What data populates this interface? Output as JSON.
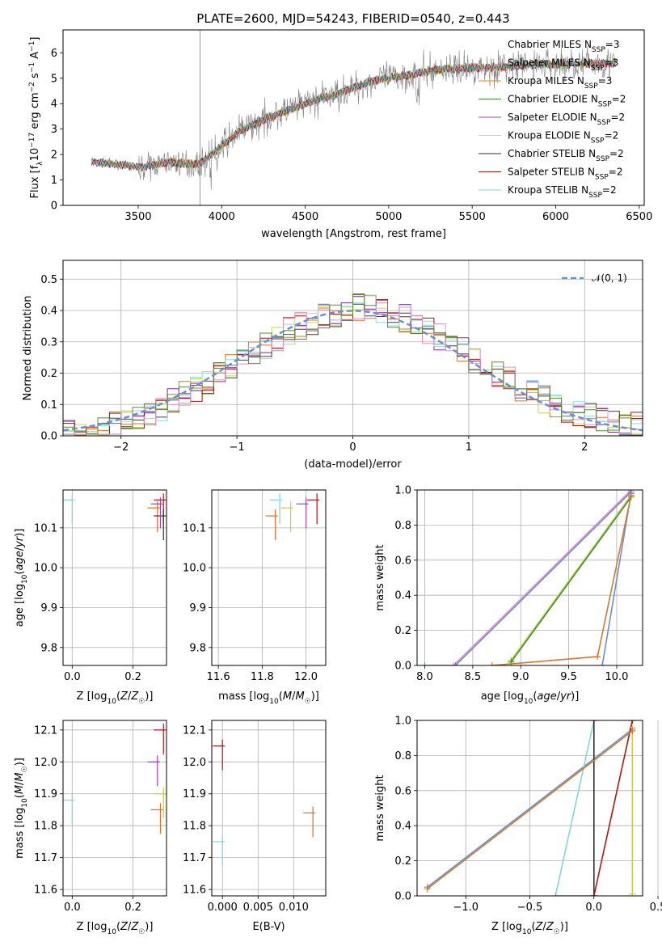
{
  "figure": {
    "title": "PLATE=2600, MJD=54243, FIBERID=0540, z=0.443"
  },
  "chart_data": [
    {
      "type": "line",
      "name": "spectrum",
      "xlabel": "wavelength [Angstrom, rest frame]",
      "ylabel_parts": [
        "Flux [f",
        "λ",
        "10",
        "−17",
        " erg cm",
        "−2",
        " s",
        "−1",
        " A",
        "−1",
        "]"
      ],
      "xlim": [
        3050,
        6530
      ],
      "ylim": [
        0,
        6.9
      ],
      "xticks": [
        3500,
        4000,
        4500,
        5000,
        5500,
        6000,
        6500
      ],
      "yticks": [
        0,
        1,
        2,
        3,
        4,
        5,
        6
      ],
      "grid": false,
      "legend_placement": "top-right",
      "observed_color": "#808080",
      "continuum_nodes": [
        [
          3220,
          1.7
        ],
        [
          3400,
          1.6
        ],
        [
          3520,
          1.5
        ],
        [
          3680,
          1.7
        ],
        [
          3860,
          1.6
        ],
        [
          3960,
          2.1
        ],
        [
          4100,
          2.9
        ],
        [
          4300,
          3.5
        ],
        [
          4500,
          4.0
        ],
        [
          4700,
          4.4
        ],
        [
          4900,
          4.9
        ],
        [
          5100,
          5.1
        ],
        [
          5300,
          5.35
        ],
        [
          5500,
          5.4
        ],
        [
          5700,
          5.45
        ],
        [
          5900,
          5.55
        ],
        [
          6100,
          5.55
        ],
        [
          6350,
          5.6
        ]
      ],
      "legend": [
        {
          "name": "Chabrier MILES",
          "sub": "SSP",
          "n": "=3",
          "color": "#6a8fd6",
          "line": false
        },
        {
          "name": "Salpeter MILES",
          "sub": "SSP",
          "n": "=3",
          "color": "#2a7a2a",
          "line": false
        },
        {
          "name": "Kroupa MILES",
          "sub": "SSP",
          "n": "=3",
          "color": "#e08a2a",
          "line": true
        },
        {
          "name": "Chabrier ELODIE",
          "sub": "SSP",
          "n": "=2",
          "color": "#3f8f3f",
          "line": true
        },
        {
          "name": "Salpeter ELODIE",
          "sub": "SSP",
          "n": "=2",
          "color": "#a040c0",
          "line": true
        },
        {
          "name": "Kroupa ELODIE",
          "sub": "SSP",
          "n": "=2",
          "color": "#d7e050",
          "line": true
        },
        {
          "name": "Chabrier STELIB",
          "sub": "SSP",
          "n": "=2",
          "color": "#303030",
          "line": true
        },
        {
          "name": "Salpeter STELIB",
          "sub": "SSP",
          "n": "=2",
          "color": "#b01515",
          "line": true
        },
        {
          "name": "Kroupa STELIB",
          "sub": "SSP",
          "n": "=2",
          "color": "#7fd6e0",
          "line": true
        }
      ]
    },
    {
      "type": "histogram",
      "name": "residuals",
      "xlabel": "(data-model)/error",
      "ylabel": "Normed distribution",
      "xlim": [
        -2.5,
        2.5
      ],
      "ylim": [
        0,
        0.56
      ],
      "xticks": [
        -2,
        -1,
        0,
        1,
        2
      ],
      "xtick_labels": [
        "−2",
        "−1",
        "0",
        "1",
        "2"
      ],
      "yticks": [
        0.0,
        0.1,
        0.2,
        0.3,
        0.4,
        0.5
      ],
      "ytick_labels": [
        "0.0",
        "0.1",
        "0.2",
        "0.3",
        "0.4",
        "0.5"
      ],
      "grid": true,
      "legend_placement": "top-right",
      "legend_label": "𝒩(0, 1)",
      "legend_color": "#6a8fd6",
      "bin_width": 0.1,
      "series_colors": [
        "#e07020",
        "#7a2aa0",
        "#b8e050",
        "#404040",
        "#a01010",
        "#80e0e8",
        "#e890c8",
        "#5a8a30"
      ]
    },
    {
      "type": "errorbar",
      "name": "age-vs-Z",
      "xlabel": "Z [log10(Z/Z☉)]",
      "ylabel": "age  [log10(age/yr)]",
      "xlim": [
        -0.03,
        0.31
      ],
      "ylim": [
        9.755,
        10.195
      ],
      "xticks": [
        0.0,
        0.2
      ],
      "xtick_labels": [
        "0.0",
        "0.2"
      ],
      "yticks": [
        9.8,
        9.9,
        10.0,
        10.1
      ],
      "ytick_labels": [
        "9.8",
        "9.9",
        "10.0",
        "10.1"
      ],
      "grid": true,
      "points": [
        {
          "x": 0.3,
          "y": 10.17,
          "color": "#b01515"
        },
        {
          "x": 0.28,
          "y": 10.15,
          "color": "#e07020"
        },
        {
          "x": 0.3,
          "y": 10.13,
          "color": "#303030"
        },
        {
          "x": 0.29,
          "y": 10.16,
          "color": "#a040c0"
        },
        {
          "x": 0.0,
          "y": 10.17,
          "color": "#7fd6e0"
        }
      ]
    },
    {
      "type": "errorbar",
      "name": "age-vs-mass",
      "xlabel": "mass [log10(M/M☉)]",
      "xlim": [
        11.57,
        12.09
      ],
      "ylim": [
        9.755,
        10.195
      ],
      "xticks": [
        11.6,
        11.8,
        12.0
      ],
      "xtick_labels": [
        "11.6",
        "11.8",
        "12.0"
      ],
      "yticks": [
        9.8,
        9.9,
        10.0,
        10.1
      ],
      "ytick_labels": [
        "9.8",
        "9.9",
        "10.0",
        "10.1"
      ],
      "grid": true,
      "points": [
        {
          "x": 11.88,
          "y": 10.17,
          "color": "#7fd6e0"
        },
        {
          "x": 11.86,
          "y": 10.13,
          "color": "#e07020"
        },
        {
          "x": 12.0,
          "y": 10.16,
          "color": "#a040c0"
        },
        {
          "x": 12.05,
          "y": 10.17,
          "color": "#b01515"
        },
        {
          "x": 11.93,
          "y": 10.15,
          "color": "#c8d040"
        }
      ]
    },
    {
      "type": "line",
      "name": "mass-weight-vs-age",
      "xlabel": "age  [log10(age/yr)]",
      "ylabel": "mass weight",
      "xlim": [
        7.92,
        10.27
      ],
      "ylim": [
        0,
        1.0
      ],
      "xticks": [
        8.0,
        8.5,
        9.0,
        9.5,
        10.0
      ],
      "xtick_labels": [
        "8.0",
        "8.5",
        "9.0",
        "9.5",
        "10.0"
      ],
      "yticks": [
        0.0,
        0.2,
        0.4,
        0.6,
        0.8,
        1.0
      ],
      "ytick_labels": [
        "0.0",
        "0.2",
        "0.4",
        "0.6",
        "0.8",
        "1.0"
      ],
      "grid": true,
      "series": [
        {
          "color": "#e890c8",
          "x": [
            8.3,
            10.15
          ],
          "y": [
            0.0,
            1.0
          ]
        },
        {
          "color": "#6a8fd6",
          "x": [
            8.0,
            8.32,
            10.15
          ],
          "y": [
            0.0,
            0.0,
            0.99
          ]
        },
        {
          "color": "#c8d040",
          "x": [
            8.9,
            10.15
          ],
          "y": [
            0.03,
            0.97
          ]
        },
        {
          "color": "#3f8f3f",
          "x": [
            8.9,
            10.15
          ],
          "y": [
            0.02,
            0.96
          ]
        },
        {
          "color": "#6a8fd6",
          "x": [
            9.85,
            10.15
          ],
          "y": [
            0.0,
            0.98
          ]
        },
        {
          "color": "#d47a2a",
          "x": [
            8.7,
            9.8,
            10.15
          ],
          "y": [
            0.0,
            0.05,
            0.97
          ]
        }
      ]
    },
    {
      "type": "errorbar",
      "name": "mass-vs-Z",
      "xlabel": "Z [log10(Z/Z☉)]",
      "ylabel": "mass [log10(M/M☉)]",
      "xlim": [
        -0.03,
        0.31
      ],
      "ylim": [
        11.58,
        12.13
      ],
      "xticks": [
        0.0,
        0.2
      ],
      "xtick_labels": [
        "0.0",
        "0.2"
      ],
      "yticks": [
        11.6,
        11.7,
        11.8,
        11.9,
        12.0,
        12.1
      ],
      "ytick_labels": [
        "11.6",
        "11.7",
        "11.8",
        "11.9",
        "12.0",
        "12.1"
      ],
      "grid": true,
      "points": [
        {
          "x": 0.3,
          "y": 12.1,
          "color": "#b01515"
        },
        {
          "x": 0.28,
          "y": 12.0,
          "color": "#a040c0"
        },
        {
          "x": 0.29,
          "y": 11.85,
          "color": "#e07020"
        },
        {
          "x": 0.3,
          "y": 11.9,
          "color": "#c8d040"
        },
        {
          "x": 0.0,
          "y": 11.88,
          "color": "#7fd6e0"
        }
      ]
    },
    {
      "type": "errorbar",
      "name": "mass-vs-EBV",
      "xlabel": "E(B-V)",
      "xlim": [
        -0.0015,
        0.0145
      ],
      "ylim": [
        11.58,
        12.13
      ],
      "xticks": [
        0.0,
        0.005,
        0.01
      ],
      "xtick_labels": [
        "0.000",
        "0.005",
        "0.010"
      ],
      "yticks": [
        11.6,
        11.7,
        11.8,
        11.9,
        12.0,
        12.1
      ],
      "ytick_labels": [
        "11.6",
        "11.7",
        "11.8",
        "11.9",
        "12.0",
        "12.1"
      ],
      "grid": true,
      "points": [
        {
          "x": 0.0,
          "y": 12.05,
          "color": "#b01515"
        },
        {
          "x": 0.0,
          "y": 11.75,
          "color": "#7fd6e0"
        },
        {
          "x": 0.0127,
          "y": 11.84,
          "color": "#e07020"
        }
      ]
    },
    {
      "type": "line",
      "name": "mass-weight-vs-Z",
      "xlabel": "Z [log10(Z/Z☉)]",
      "ylabel": "mass weight",
      "xlim": [
        -1.38,
        0.38
      ],
      "ylim": [
        0,
        1.0
      ],
      "xticks": [
        -1.0,
        -0.5,
        0.0,
        0.5
      ],
      "xtick_labels": [
        "−1.0",
        "−0.5",
        "0.0",
        "0.5"
      ],
      "yticks": [
        0.0,
        0.2,
        0.4,
        0.6,
        0.8,
        1.0
      ],
      "ytick_labels": [
        "0.0",
        "0.2",
        "0.4",
        "0.6",
        "0.8",
        "1.0"
      ],
      "grid": true,
      "series": [
        {
          "color": "#6a8fd6",
          "x": [
            -1.3,
            0.3
          ],
          "y": [
            0.05,
            0.95
          ]
        },
        {
          "color": "#7fd6e0",
          "x": [
            -0.3,
            0.0
          ],
          "y": [
            0.0,
            1.0
          ]
        },
        {
          "color": "#e890c8",
          "x": [
            -0.3,
            0.0
          ],
          "y": [
            0.0,
            0.0
          ]
        },
        {
          "color": "#303030",
          "x": [
            0.0,
            0.0
          ],
          "y": [
            0.0,
            1.0
          ]
        },
        {
          "color": "#b01515",
          "x": [
            0.0,
            0.3
          ],
          "y": [
            0.0,
            1.0
          ]
        },
        {
          "color": "#c8d040",
          "x": [
            0.3,
            0.3
          ],
          "y": [
            0.01,
            0.96
          ]
        },
        {
          "color": "#d47a2a",
          "x": [
            -1.3,
            0.3
          ],
          "y": [
            0.04,
            0.94
          ]
        }
      ]
    }
  ]
}
